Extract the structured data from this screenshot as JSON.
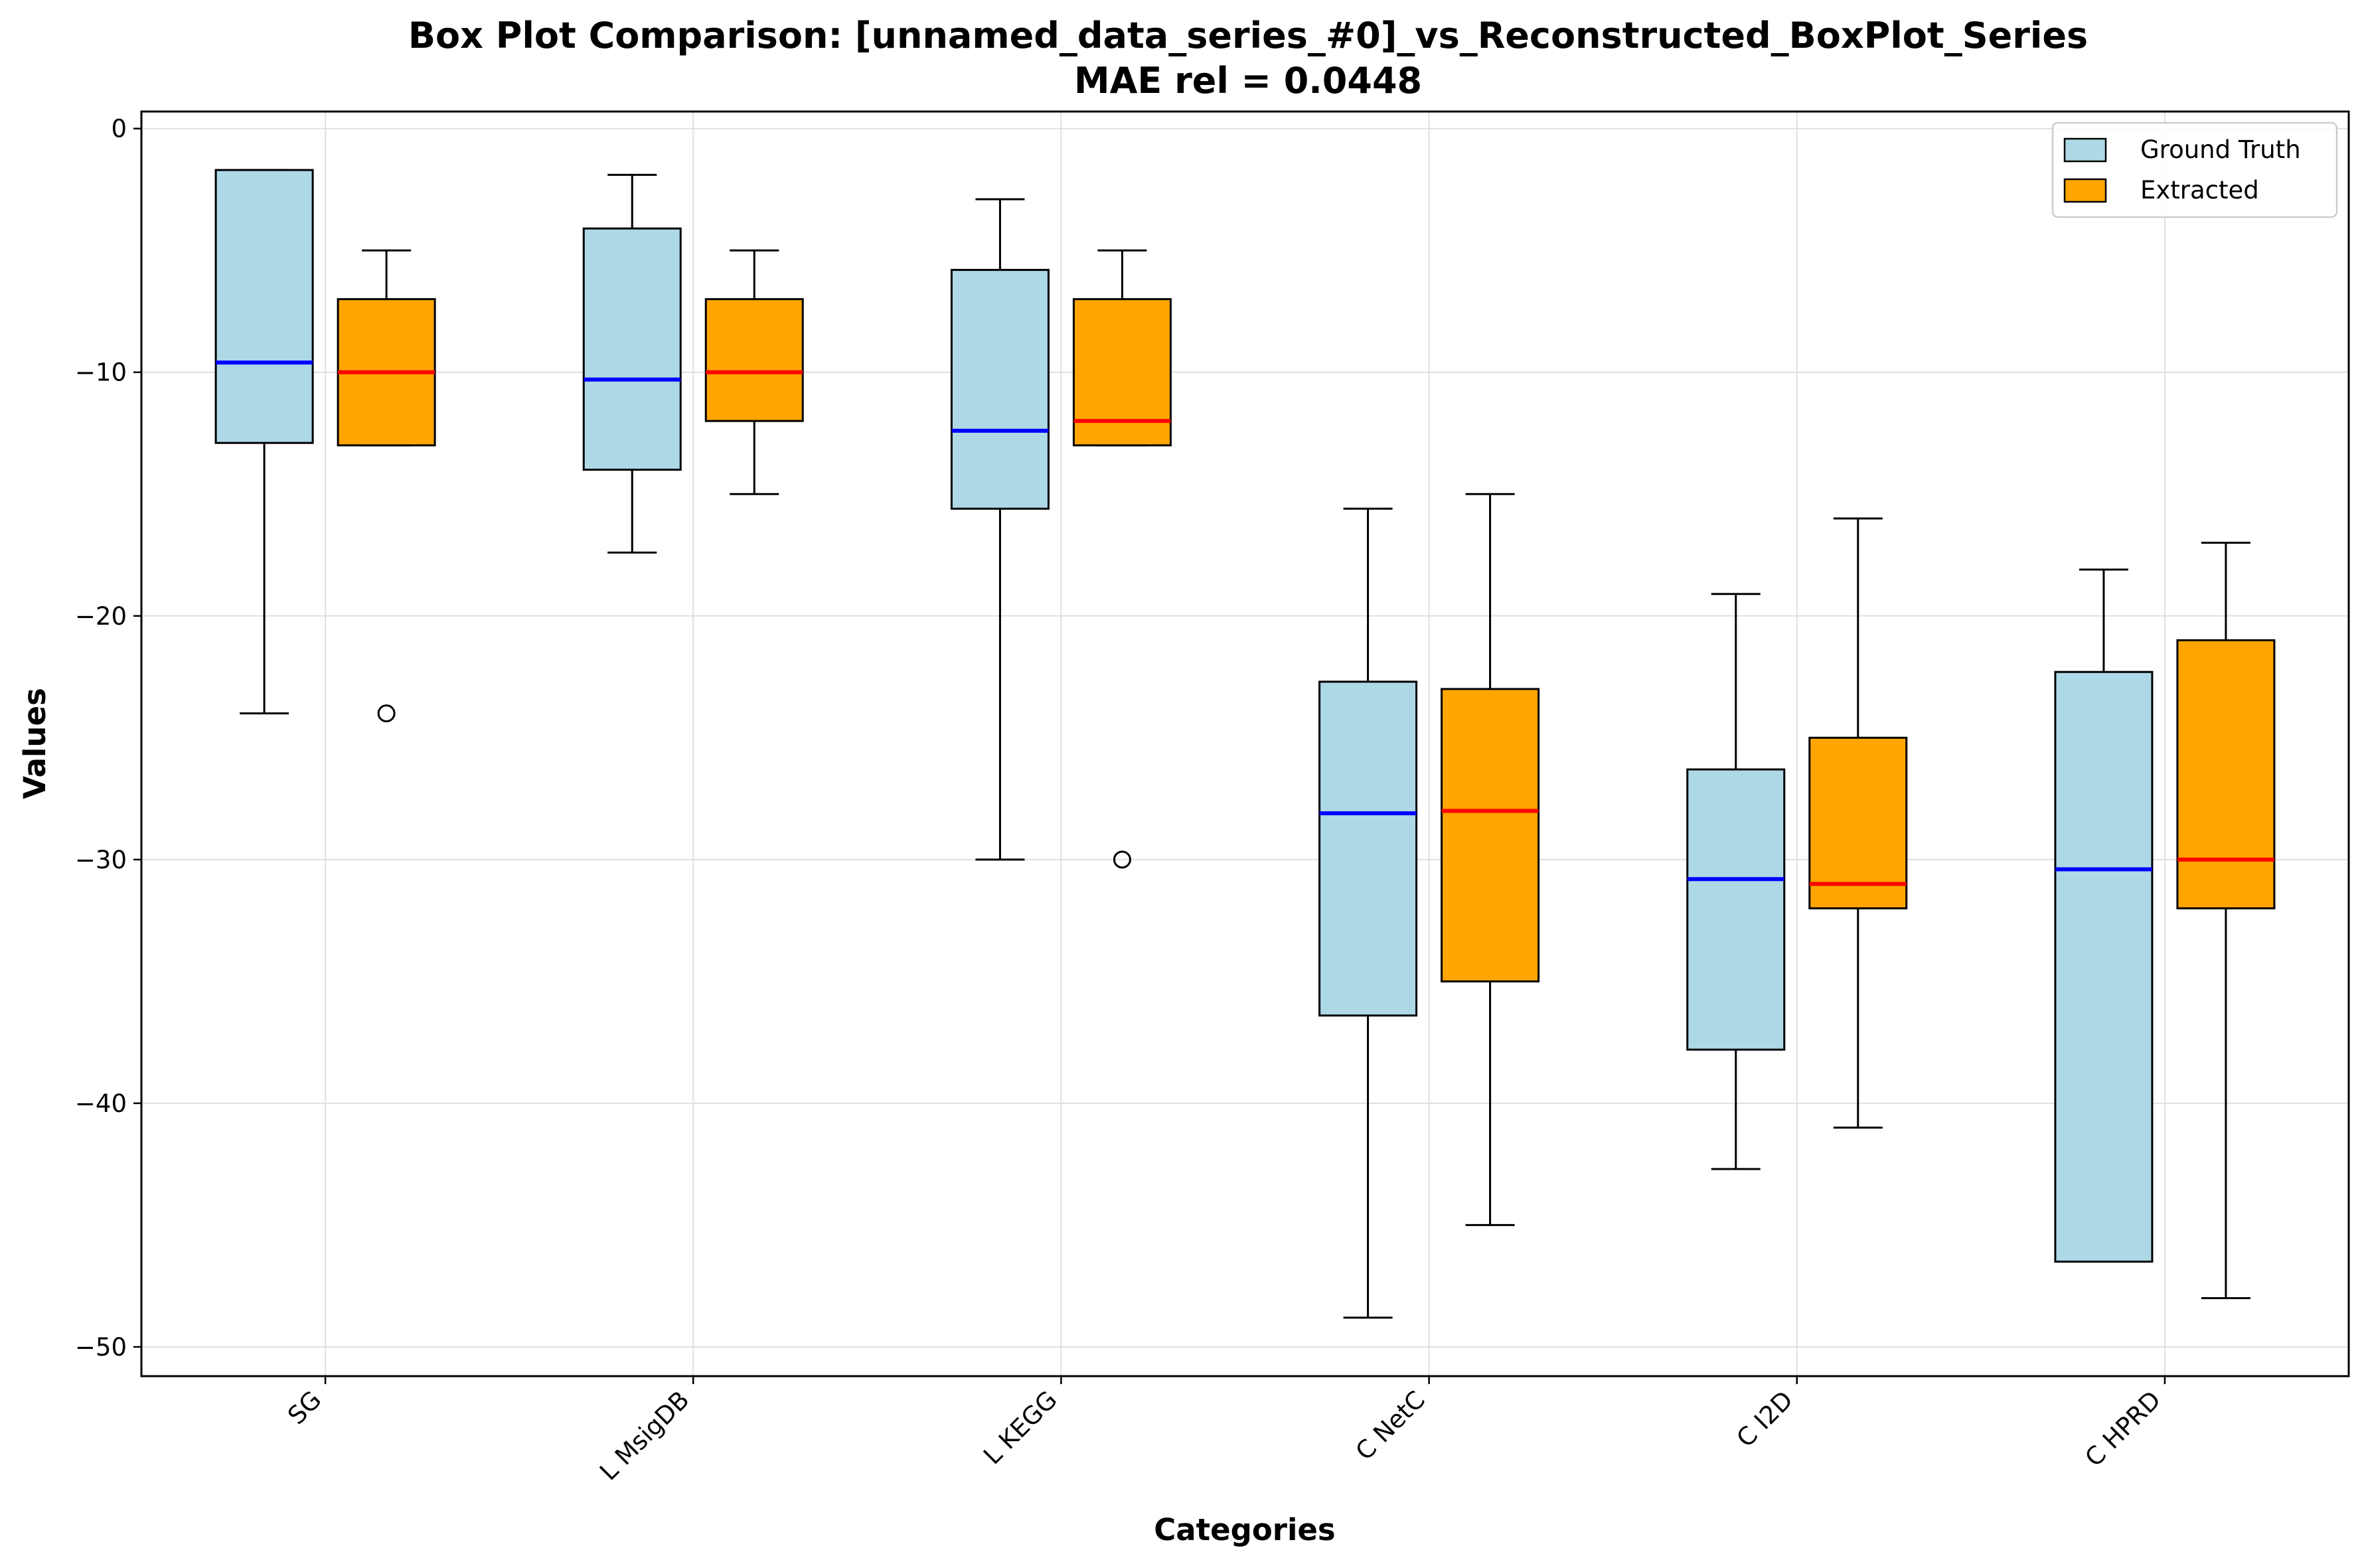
{
  "chart_data": {
    "type": "box",
    "title": "Box Plot Comparison: [unnamed_data_series_#0]_vs_Reconstructed_BoxPlot_Series",
    "subtitle": "MAE rel = 0.0448",
    "xlabel": "Categories",
    "ylabel": "Values",
    "ylim": [
      -51.2,
      0.7
    ],
    "yticks": [
      0,
      -10,
      -20,
      -30,
      -40,
      -50
    ],
    "grid": true,
    "legend_position": "top-right",
    "categories": [
      "SG",
      "L MsigDB",
      "L KEGG",
      "C NetC",
      "C I2D",
      "C HPRD"
    ],
    "series": [
      {
        "name": "Ground Truth",
        "fill": "#add8e6",
        "median_color": "#0000ff",
        "boxes": [
          {
            "whislo": -24,
            "q1": -12.9,
            "med": -9.6,
            "q3": -1.7,
            "whishi": -1.7,
            "fliers": []
          },
          {
            "whislo": -17.4,
            "q1": -14,
            "med": -10.3,
            "q3": -4.1,
            "whishi": -1.9,
            "fliers": []
          },
          {
            "whislo": -30,
            "q1": -15.6,
            "med": -12.4,
            "q3": -5.8,
            "whishi": -2.9,
            "fliers": []
          },
          {
            "whislo": -48.8,
            "q1": -36.4,
            "med": -28.1,
            "q3": -22.7,
            "whishi": -15.6,
            "fliers": []
          },
          {
            "whislo": -42.7,
            "q1": -37.8,
            "med": -30.8,
            "q3": -26.3,
            "whishi": -19.1,
            "fliers": []
          },
          {
            "whislo": -46.5,
            "q1": -46.5,
            "med": -30.4,
            "q3": -22.3,
            "whishi": -18.1,
            "fliers": []
          }
        ]
      },
      {
        "name": "Extracted",
        "fill": "#ffa500",
        "median_color": "#ff0000",
        "boxes": [
          {
            "whislo": -13,
            "q1": -13,
            "med": -10,
            "q3": -7,
            "whishi": -5,
            "fliers": [
              -24
            ]
          },
          {
            "whislo": -15,
            "q1": -12,
            "med": -10,
            "q3": -7,
            "whishi": -5,
            "fliers": []
          },
          {
            "whislo": -13,
            "q1": -13,
            "med": -12,
            "q3": -7,
            "whishi": -5,
            "fliers": [
              -30
            ]
          },
          {
            "whislo": -45,
            "q1": -35,
            "med": -28,
            "q3": -23,
            "whishi": -15,
            "fliers": []
          },
          {
            "whislo": -41,
            "q1": -32,
            "med": -31,
            "q3": -25,
            "whishi": -16,
            "fliers": []
          },
          {
            "whislo": -48,
            "q1": -32,
            "med": -30,
            "q3": -21,
            "whishi": -17,
            "fliers": []
          }
        ]
      }
    ]
  }
}
